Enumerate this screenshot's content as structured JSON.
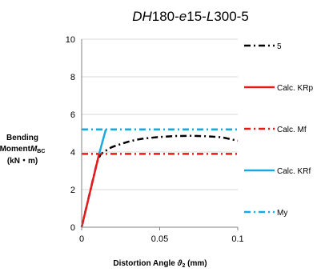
{
  "chart_data": {
    "type": "line",
    "title": {
      "part1": "DH",
      "part2": "180-",
      "part3": "e",
      "part4": "15-",
      "part5": "L",
      "part6": "300-5"
    },
    "xlabel": {
      "main": "Distortion Angle ",
      "symbol": "ϑ",
      "subscript": "2",
      "unit": " (mm)"
    },
    "ylabel": {
      "line1": "Bending",
      "line2_main": "Moment",
      "line2_symbol": "M",
      "line2_sub": "BC",
      "line3": "(kN・m)"
    },
    "xlim": [
      0,
      0.1
    ],
    "ylim": [
      0,
      10
    ],
    "xticks": [
      0,
      0.05,
      0.1
    ],
    "xtick_labels": [
      "0",
      "0.05",
      "0.1"
    ],
    "yticks": [
      0,
      2,
      4,
      6,
      8,
      10
    ],
    "ytick_labels": [
      "0",
      "2",
      "4",
      "6",
      "8",
      "10"
    ],
    "grid": "horizontal",
    "legend_position": "right",
    "series": [
      {
        "name": "5",
        "color": "#000000",
        "style": "dash-dot",
        "x": [
          0,
          0.004,
          0.008,
          0.01,
          0.012,
          0.014,
          0.016,
          0.018,
          0.02,
          0.025,
          0.03,
          0.035,
          0.04,
          0.05,
          0.06,
          0.07,
          0.08,
          0.09,
          0.1
        ],
        "y": [
          0,
          1.4,
          2.8,
          3.5,
          3.85,
          4.0,
          4.1,
          4.2,
          4.28,
          4.42,
          4.55,
          4.65,
          4.72,
          4.8,
          4.85,
          4.86,
          4.84,
          4.78,
          4.6
        ]
      },
      {
        "name": "Calc. KRp",
        "color": "#E8191A",
        "style": "solid",
        "x": [
          0,
          0.0112
        ],
        "y": [
          0,
          3.9
        ]
      },
      {
        "name": "Calc. Mf",
        "color": "#E8191A",
        "style": "dash-dot",
        "x": [
          0,
          0.1
        ],
        "y": [
          3.9,
          3.9
        ]
      },
      {
        "name": "Calc. KRf",
        "color": "#18A9E1",
        "style": "solid",
        "x": [
          0.0112,
          0.0155
        ],
        "y": [
          3.9,
          5.2
        ]
      },
      {
        "name": "My",
        "color": "#18A9E1",
        "style": "dash-dot",
        "x": [
          0,
          0.1
        ],
        "y": [
          5.2,
          5.2
        ]
      }
    ]
  }
}
